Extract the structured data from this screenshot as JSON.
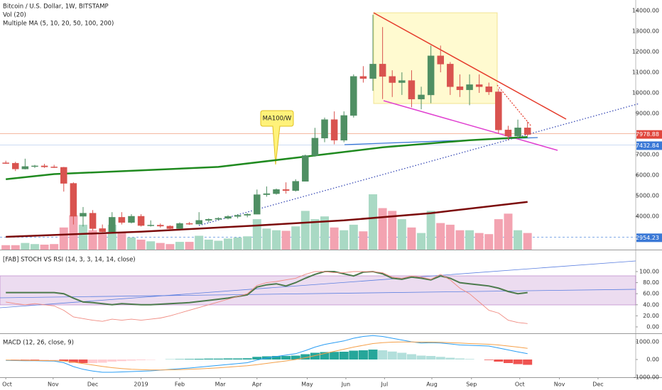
{
  "chart_data": [
    {
      "type": "candlestick",
      "title": "Bitcoin / U.S. Dollar, 1W, BITSTAMP",
      "subtitles": [
        "Vol (20)",
        "Multiple MA (5, 10, 20, 50, 100, 200)"
      ],
      "annotation": "MA100/W",
      "open": [
        6600,
        6580,
        6300,
        6420,
        6450,
        6400,
        6380,
        5600,
        4000,
        4150,
        3400,
        3250,
        3950,
        3700,
        4000,
        3550,
        3570,
        3520,
        3400,
        3650,
        3620,
        3800,
        3850,
        3900,
        3990,
        4050,
        4100,
        5050,
        5100,
        5300,
        5250,
        5700,
        6950,
        7800,
        8700,
        7700,
        8900,
        10800,
        10700,
        11400,
        10800,
        10500,
        10600,
        9700,
        9900,
        11800,
        11400,
        10300,
        10150,
        10400,
        10300,
        10050,
        8200,
        7900,
        8300
      ],
      "high": [
        6700,
        6650,
        6800,
        6500,
        6550,
        6500,
        6400,
        5650,
        4450,
        4300,
        3600,
        4200,
        4200,
        4100,
        4100,
        3800,
        3650,
        3560,
        3700,
        3720,
        4200,
        3900,
        3950,
        4050,
        4100,
        4150,
        5300,
        5450,
        5350,
        5650,
        5800,
        7000,
        8300,
        8800,
        9100,
        9100,
        10900,
        11300,
        13800,
        13200,
        11100,
        11000,
        11100,
        10300,
        12300,
        12300,
        11500,
        10900,
        10900,
        10900,
        10500,
        10200,
        8400,
        8700,
        8600
      ],
      "low": [
        6550,
        6200,
        6280,
        6350,
        6350,
        6350,
        5200,
        3600,
        3500,
        3300,
        3200,
        3250,
        3600,
        3650,
        3500,
        3500,
        3450,
        3350,
        3380,
        3580,
        3600,
        3700,
        3800,
        3850,
        3900,
        3950,
        4100,
        4950,
        5050,
        5100,
        5200,
        5700,
        6900,
        7600,
        7500,
        7600,
        8800,
        10500,
        10100,
        9700,
        9800,
        9900,
        9300,
        9200,
        9500,
        11000,
        9900,
        9800,
        9400,
        10000,
        9900,
        8000,
        7700,
        7800,
        7900
      ],
      "close": [
        6580,
        6300,
        6420,
        6450,
        6400,
        6380,
        5600,
        4000,
        4150,
        3400,
        3250,
        3950,
        3700,
        4000,
        3550,
        3570,
        3520,
        3400,
        3650,
        3620,
        3800,
        3850,
        3900,
        3990,
        4050,
        4100,
        5050,
        5100,
        5300,
        5250,
        5700,
        6950,
        7800,
        8700,
        7700,
        8900,
        10800,
        10700,
        11400,
        10800,
        10500,
        10600,
        9700,
        9900,
        11800,
        11400,
        10300,
        10150,
        10400,
        10300,
        10050,
        8200,
        7900,
        8300,
        7978.88
      ],
      "volume": [
        8,
        8,
        12,
        10,
        9,
        10,
        40,
        62,
        45,
        35,
        28,
        45,
        30,
        22,
        18,
        15,
        12,
        10,
        14,
        14,
        25,
        18,
        16,
        20,
        22,
        24,
        55,
        38,
        35,
        34,
        42,
        70,
        55,
        60,
        40,
        35,
        45,
        33,
        100,
        75,
        70,
        55,
        40,
        30,
        70,
        48,
        45,
        35,
        35,
        30,
        28,
        55,
        65,
        35,
        30
      ],
      "up_color": "#4f8f63",
      "down_color": "#d9534f",
      "volume_up_color": "#a9d9c4",
      "volume_down_color": "#f3a3b1",
      "lines": [
        {
          "color": "#1f8a1f",
          "x": [
            0,
            5,
            14,
            22,
            31,
            39,
            48,
            54
          ],
          "values": [
            5800,
            6050,
            6230,
            6400,
            6900,
            7350,
            7700,
            7850
          ]
        },
        {
          "color": "#7b0a0a",
          "x": [
            0,
            14,
            26,
            35,
            44,
            54
          ],
          "values": [
            3000,
            3250,
            3550,
            3800,
            4150,
            4700
          ]
        }
      ],
      "xlim": [
        -0.6,
        65.2
      ],
      "ylim": [
        2379,
        14517
      ],
      "yticks": [
        {
          "value": 14000,
          "label": "14000.00"
        },
        {
          "value": 13000,
          "label": "13000.00"
        },
        {
          "value": 12000,
          "label": "12000.00"
        },
        {
          "value": 11000,
          "label": "11000.00"
        },
        {
          "value": 10000,
          "label": "10000.00"
        },
        {
          "value": 9000,
          "label": "9000.00"
        },
        {
          "value": 7000,
          "label": "7000.00"
        },
        {
          "value": 6000,
          "label": "6000.00"
        },
        {
          "value": 5000,
          "label": "5000.00"
        },
        {
          "value": 4000,
          "label": "4000.00"
        }
      ],
      "price_labels": [
        {
          "value": 7978.88,
          "color": "#e0463c"
        },
        {
          "value": 7432.84,
          "color": "#3a78d6"
        },
        {
          "value": 2954.23,
          "color": "#3a78d6"
        }
      ]
    },
    {
      "type": "line",
      "title": "[FAB] STOCH VS RSI (14, 3, 3, 14, 14, close)",
      "series": [
        {
          "color": "#4c7a4c",
          "values": [
            62,
            62,
            62,
            62,
            62,
            62,
            60,
            52,
            45,
            44,
            42,
            40,
            42,
            41,
            40,
            40,
            41,
            42,
            43,
            44,
            46,
            48,
            50,
            52,
            55,
            58,
            72,
            76,
            78,
            74,
            80,
            88,
            95,
            100,
            100,
            96,
            92,
            99,
            100,
            96,
            88,
            86,
            90,
            88,
            85,
            92,
            88,
            80,
            78,
            76,
            74,
            70,
            64,
            60,
            62
          ]
        },
        {
          "color": "#f08a80",
          "values": [
            45,
            42,
            40,
            42,
            40,
            38,
            30,
            18,
            15,
            12,
            10,
            14,
            12,
            14,
            12,
            14,
            16,
            20,
            25,
            30,
            35,
            40,
            45,
            50,
            55,
            60,
            75,
            80,
            82,
            85,
            88,
            95,
            100,
            100,
            98,
            98,
            100,
            100,
            100,
            98,
            90,
            88,
            92,
            90,
            86,
            95,
            85,
            70,
            60,
            45,
            30,
            25,
            12,
            8,
            6
          ]
        }
      ],
      "xlim": [
        -0.6,
        65.2
      ],
      "ylim": [
        0,
        100
      ],
      "yticks": [
        {
          "value": 100,
          "label": "100.00"
        },
        {
          "value": 80,
          "label": "80.00"
        },
        {
          "value": 60,
          "label": "60.00"
        },
        {
          "value": 40,
          "label": "40.00"
        },
        {
          "value": 20,
          "label": "20.00"
        },
        {
          "value": 0,
          "label": "0.00"
        }
      ]
    },
    {
      "type": "macd",
      "title": "MACD (12, 26, close, 9)",
      "histogram": [
        0,
        -10,
        -20,
        -30,
        -30,
        -20,
        -80,
        -180,
        -200,
        -200,
        -180,
        -120,
        -90,
        -60,
        -40,
        -20,
        0,
        10,
        20,
        30,
        40,
        50,
        50,
        60,
        60,
        70,
        150,
        180,
        200,
        200,
        220,
        300,
        380,
        420,
        430,
        440,
        500,
        520,
        560,
        520,
        450,
        380,
        300,
        220,
        200,
        150,
        100,
        60,
        30,
        0,
        -30,
        -120,
        -200,
        -260,
        -300
      ],
      "histogram_colors": [
        "#26a69a",
        "#b2dfdb",
        "#ef5350",
        "#ffcdd2"
      ],
      "series": [
        {
          "color": "#2a9df4",
          "values": [
            -50,
            -60,
            -70,
            -70,
            -80,
            -90,
            -180,
            -400,
            -550,
            -650,
            -720,
            -720,
            -700,
            -680,
            -660,
            -640,
            -600,
            -560,
            -520,
            -480,
            -430,
            -380,
            -330,
            -280,
            -230,
            -180,
            -30,
            80,
            170,
            250,
            330,
            500,
            700,
            850,
            950,
            1050,
            1200,
            1300,
            1350,
            1300,
            1200,
            1100,
            1000,
            930,
            950,
            930,
            880,
            820,
            800,
            780,
            760,
            650,
            540,
            430,
            330
          ]
        },
        {
          "color": "#f5a04a",
          "values": [
            -30,
            -40,
            -50,
            -55,
            -60,
            -65,
            -85,
            -150,
            -230,
            -310,
            -390,
            -460,
            -510,
            -550,
            -570,
            -590,
            -590,
            -580,
            -570,
            -550,
            -530,
            -500,
            -470,
            -430,
            -390,
            -350,
            -290,
            -220,
            -150,
            -80,
            0,
            100,
            220,
            340,
            460,
            580,
            700,
            800,
            900,
            950,
            980,
            990,
            990,
            980,
            980,
            970,
            950,
            930,
            900,
            880,
            860,
            820,
            760,
            700,
            630
          ]
        }
      ],
      "xlim": [
        -0.6,
        65.2
      ],
      "ylim": [
        -1440,
        1440
      ],
      "yticks": [
        {
          "value": 1000,
          "label": "1000.00"
        },
        {
          "value": 0,
          "label": "0.00"
        },
        {
          "value": -1000,
          "label": "-1000.00"
        }
      ],
      "xticks": [
        {
          "value": 0,
          "label": "Oct"
        },
        {
          "value": 4.9,
          "label": "Nov"
        },
        {
          "value": 9,
          "label": "Dec"
        },
        {
          "value": 14,
          "label": "2019"
        },
        {
          "value": 18,
          "label": "Feb"
        },
        {
          "value": 22.2,
          "label": "Mar"
        },
        {
          "value": 26,
          "label": "Apr"
        },
        {
          "value": 31.2,
          "label": "May"
        },
        {
          "value": 35.2,
          "label": "Jun"
        },
        {
          "value": 39.2,
          "label": "Jul"
        },
        {
          "value": 44.1,
          "label": "Aug"
        },
        {
          "value": 48.2,
          "label": "Sep"
        },
        {
          "value": 53.2,
          "label": "Oct"
        },
        {
          "value": 57.3,
          "label": "Nov"
        },
        {
          "value": 61.3,
          "label": "Dec"
        }
      ]
    }
  ]
}
